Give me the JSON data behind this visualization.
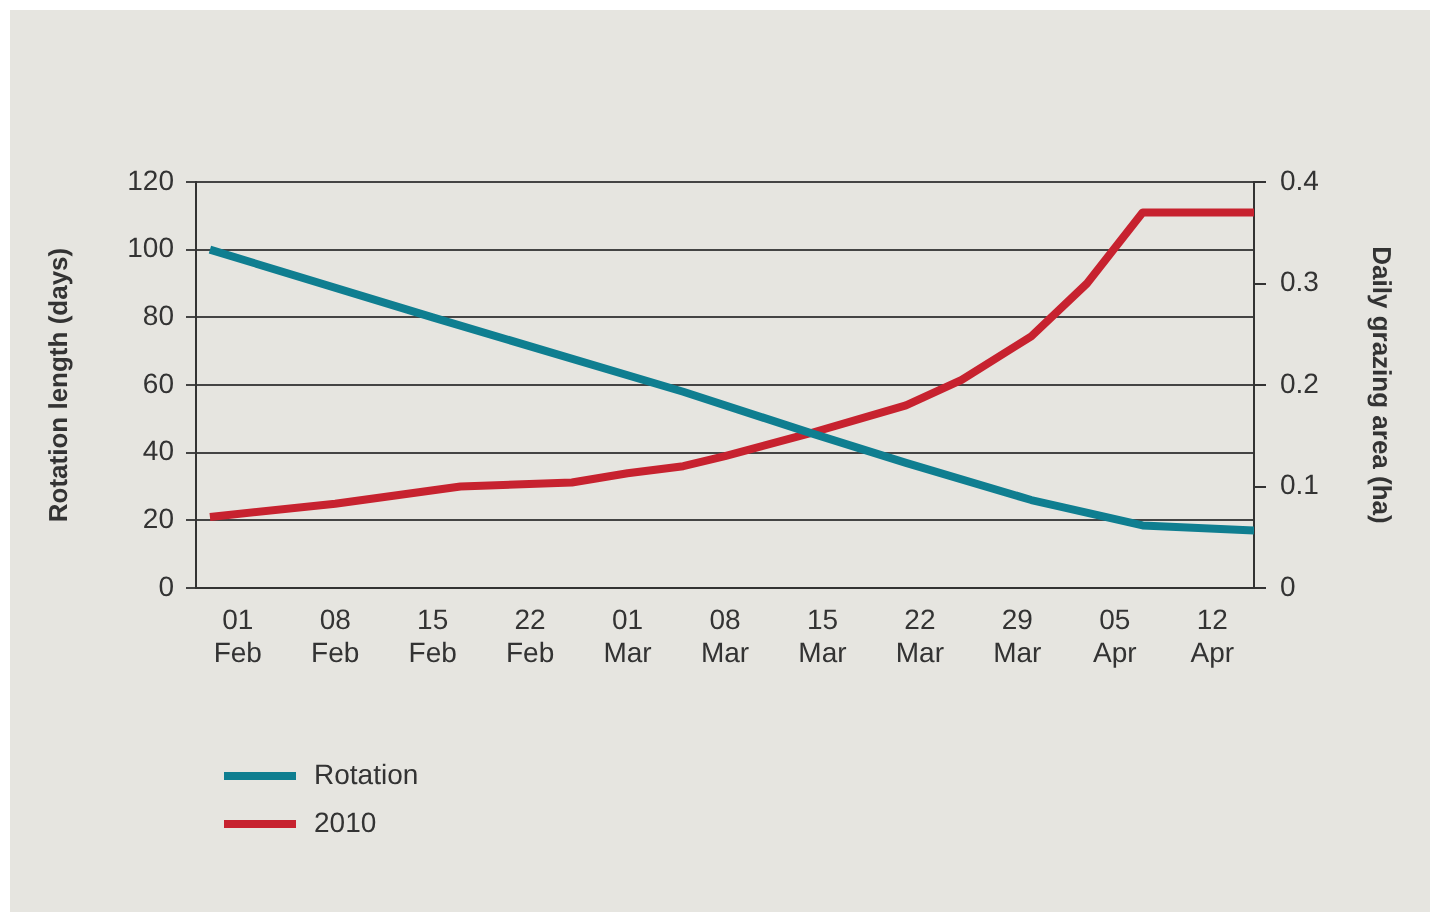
{
  "chart_data": {
    "type": "line",
    "ylabel": "Rotation length (days)",
    "y2label": "Daily grazing area (ha)",
    "series": [
      {
        "name": "Rotation",
        "color": "#0f7e90",
        "x": [
          "--01-30",
          "--02-15",
          "--03-05",
          "--03-14",
          "--03-21",
          "--03-30",
          "--04-07",
          "--04-15"
        ],
        "values": [
          100,
          80,
          58,
          46,
          37,
          26,
          18.5,
          17
        ]
      },
      {
        "name": "2010",
        "color": "#c7222f",
        "axis": "y2",
        "x": [
          "--01-30",
          "--02-08",
          "--02-17",
          "--02-25",
          "--03-01",
          "--03-05",
          "--03-08",
          "--03-14",
          "--03-21",
          "--03-25",
          "--03-30",
          "--04-03",
          "--04-07",
          "--04-15"
        ],
        "values": [
          0.07,
          0.083,
          0.1,
          0.104,
          0.113,
          0.12,
          0.13,
          0.152,
          0.18,
          0.205,
          0.248,
          0.3,
          0.37,
          0.37
        ]
      }
    ],
    "xlim": [
      "--01-29",
      "--04-15"
    ],
    "xticks": [
      {
        "value": "--02-01",
        "label": "01 Feb"
      },
      {
        "value": "--02-08",
        "label": "08 Feb"
      },
      {
        "value": "--02-15",
        "label": "15 Feb"
      },
      {
        "value": "--02-22",
        "label": "22 Feb"
      },
      {
        "value": "--03-01",
        "label": "01 Mar"
      },
      {
        "value": "--03-08",
        "label": "08 Mar"
      },
      {
        "value": "--03-15",
        "label": "15 Mar"
      },
      {
        "value": "--03-22",
        "label": "22 Mar"
      },
      {
        "value": "--03-29",
        "label": "29 Mar"
      },
      {
        "value": "--04-05",
        "label": "05 Apr"
      },
      {
        "value": "--04-12",
        "label": "12 Apr"
      }
    ],
    "ylim": [
      0,
      120
    ],
    "yticks": [
      0,
      20,
      40,
      60,
      80,
      100,
      120
    ],
    "y2lim": [
      0,
      0.4
    ],
    "y2ticks": [
      0,
      0.1,
      0.2,
      0.3,
      0.4
    ],
    "grid": "y",
    "legend": "bottom left",
    "line_style": "solid"
  }
}
